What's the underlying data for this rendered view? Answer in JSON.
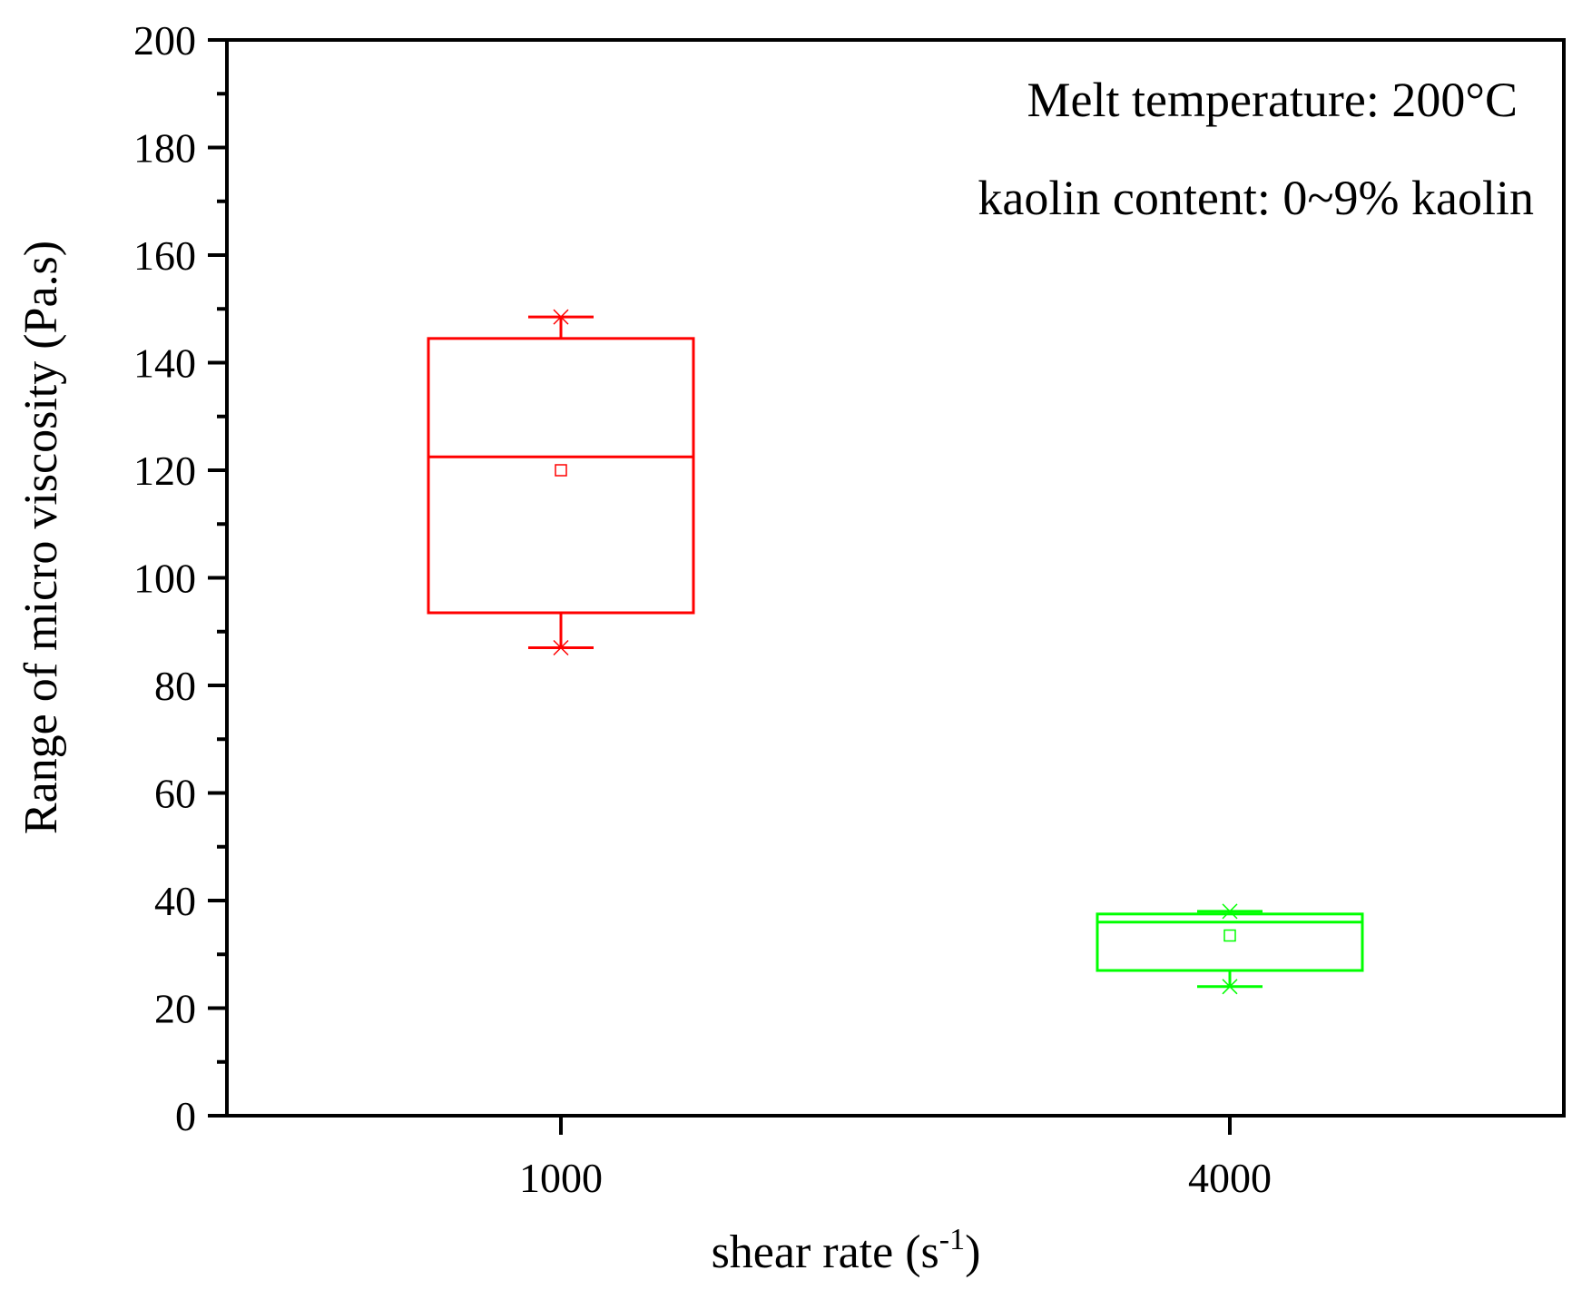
{
  "chart_data": {
    "type": "box",
    "xlabel": "shear rate (s",
    "xlabel_superscript": "-1",
    "xlabel_suffix": ")",
    "ylabel": "Range of micro viscosity (Pa.s)",
    "ylim": [
      0,
      200
    ],
    "y_major_ticks": [
      0,
      20,
      40,
      60,
      80,
      100,
      120,
      140,
      160,
      180,
      200
    ],
    "y_tick_labels": [
      "0",
      "20",
      "40",
      "60",
      "80",
      "100",
      "120",
      "140",
      "160",
      "180",
      "200"
    ],
    "categories": [
      "1000",
      "4000"
    ],
    "annotations": [
      "Melt temperature: 200°C",
      "kaolin content: 0~9% kaolin"
    ],
    "series": [
      {
        "category": "1000",
        "color": "#ff0000",
        "whisker_low": 87,
        "q1": 93.5,
        "median": 122.5,
        "q3": 144.5,
        "whisker_high": 148.5,
        "mean": 120,
        "min": 87,
        "max": 148.5
      },
      {
        "category": "4000",
        "color": "#00ff00",
        "whisker_low": 24,
        "q1": 27,
        "median": 36,
        "q3": 37.5,
        "whisker_high": 38,
        "mean": 33.5,
        "min": 24,
        "max": 38
      }
    ],
    "grid": false,
    "legend": "none"
  }
}
